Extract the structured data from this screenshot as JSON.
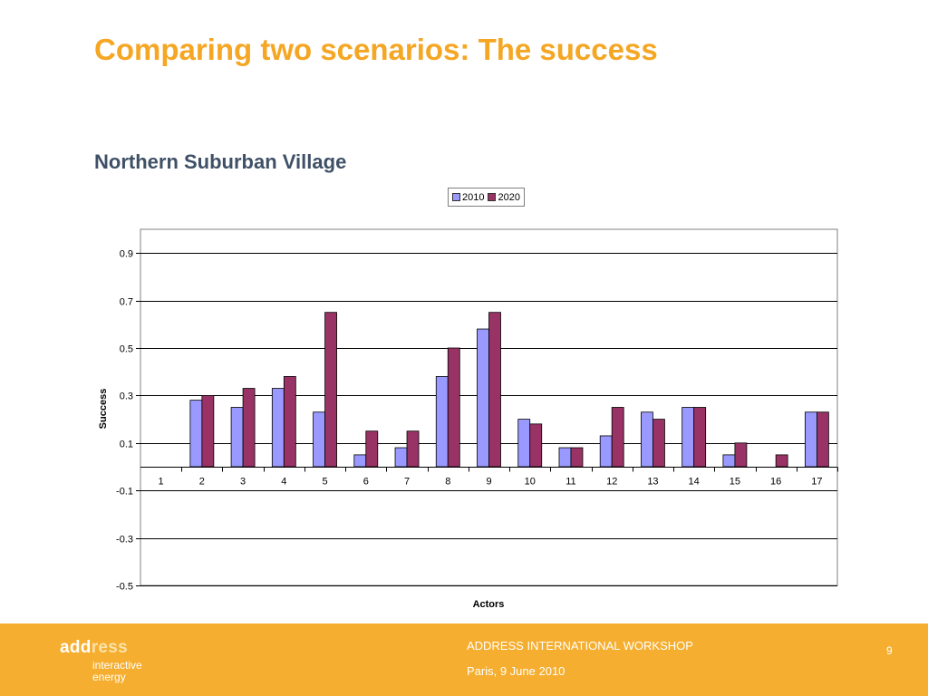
{
  "slide": {
    "title": "Comparing two scenarios: The success",
    "chart_heading": "Northern Suburban Village"
  },
  "footer": {
    "logo_main_dark": "add",
    "logo_main_light": "ress",
    "logo_line1": "interactive",
    "logo_line2": "energy",
    "event": "ADDRESS INTERNATIONAL WORKSHOP",
    "date": "Paris, 9 June 2010",
    "page_number": "9"
  },
  "colors": {
    "title": "#F5A623",
    "heading": "#3F5066",
    "footer_bg": "#F5AE2F",
    "series_2010": "#9999FF",
    "series_2020": "#993366"
  },
  "chart_data": {
    "type": "bar",
    "xlabel": "Actors",
    "ylabel": "Success",
    "ylim": [
      -0.5,
      1.0
    ],
    "yticks": [
      -0.5,
      -0.3,
      -0.1,
      0.1,
      0.3,
      0.5,
      0.7,
      0.9
    ],
    "ytick_labels": [
      "-0.5",
      "-0.3",
      "-0.1",
      "0.1",
      "0.3",
      "0.5",
      "0.7",
      "0.9"
    ],
    "grid": true,
    "legend_position": "top-center",
    "categories": [
      "1",
      "2",
      "3",
      "4",
      "5",
      "6",
      "7",
      "8",
      "9",
      "10",
      "11",
      "12",
      "13",
      "14",
      "15",
      "16",
      "17"
    ],
    "series": [
      {
        "name": "2010",
        "color": "#9999FF",
        "values": [
          0,
          0.28,
          0.25,
          0.33,
          0.23,
          0.05,
          0.08,
          0.38,
          0.58,
          0.2,
          0.08,
          0.13,
          0.23,
          0.25,
          0.05,
          0,
          0.23
        ]
      },
      {
        "name": "2020",
        "color": "#993366",
        "values": [
          0,
          0.3,
          0.33,
          0.38,
          0.65,
          0.15,
          0.15,
          0.5,
          0.65,
          0.18,
          0.08,
          0.25,
          0.2,
          0.25,
          0.1,
          0.05,
          0.23
        ]
      }
    ]
  }
}
